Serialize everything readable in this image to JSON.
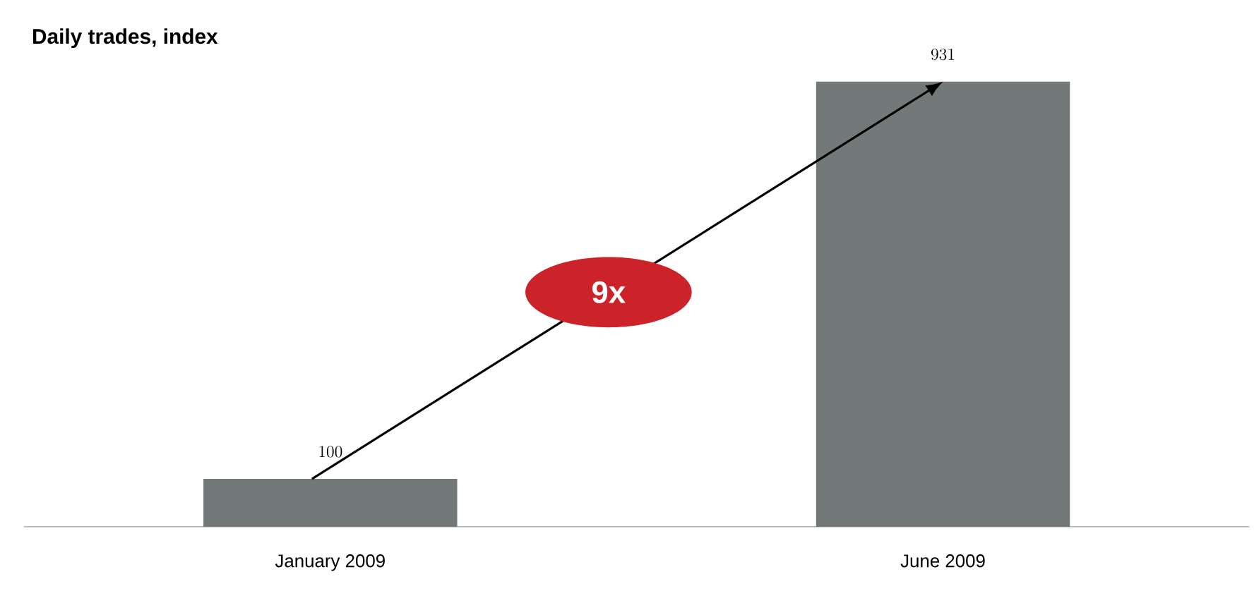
{
  "chart_data": {
    "type": "bar",
    "title": "Daily trades, index",
    "categories": [
      "January 2009",
      "June 2009"
    ],
    "values": [
      100,
      931
    ],
    "color": "#737879",
    "data_labels": true,
    "annotations": [
      "9x"
    ]
  }
}
